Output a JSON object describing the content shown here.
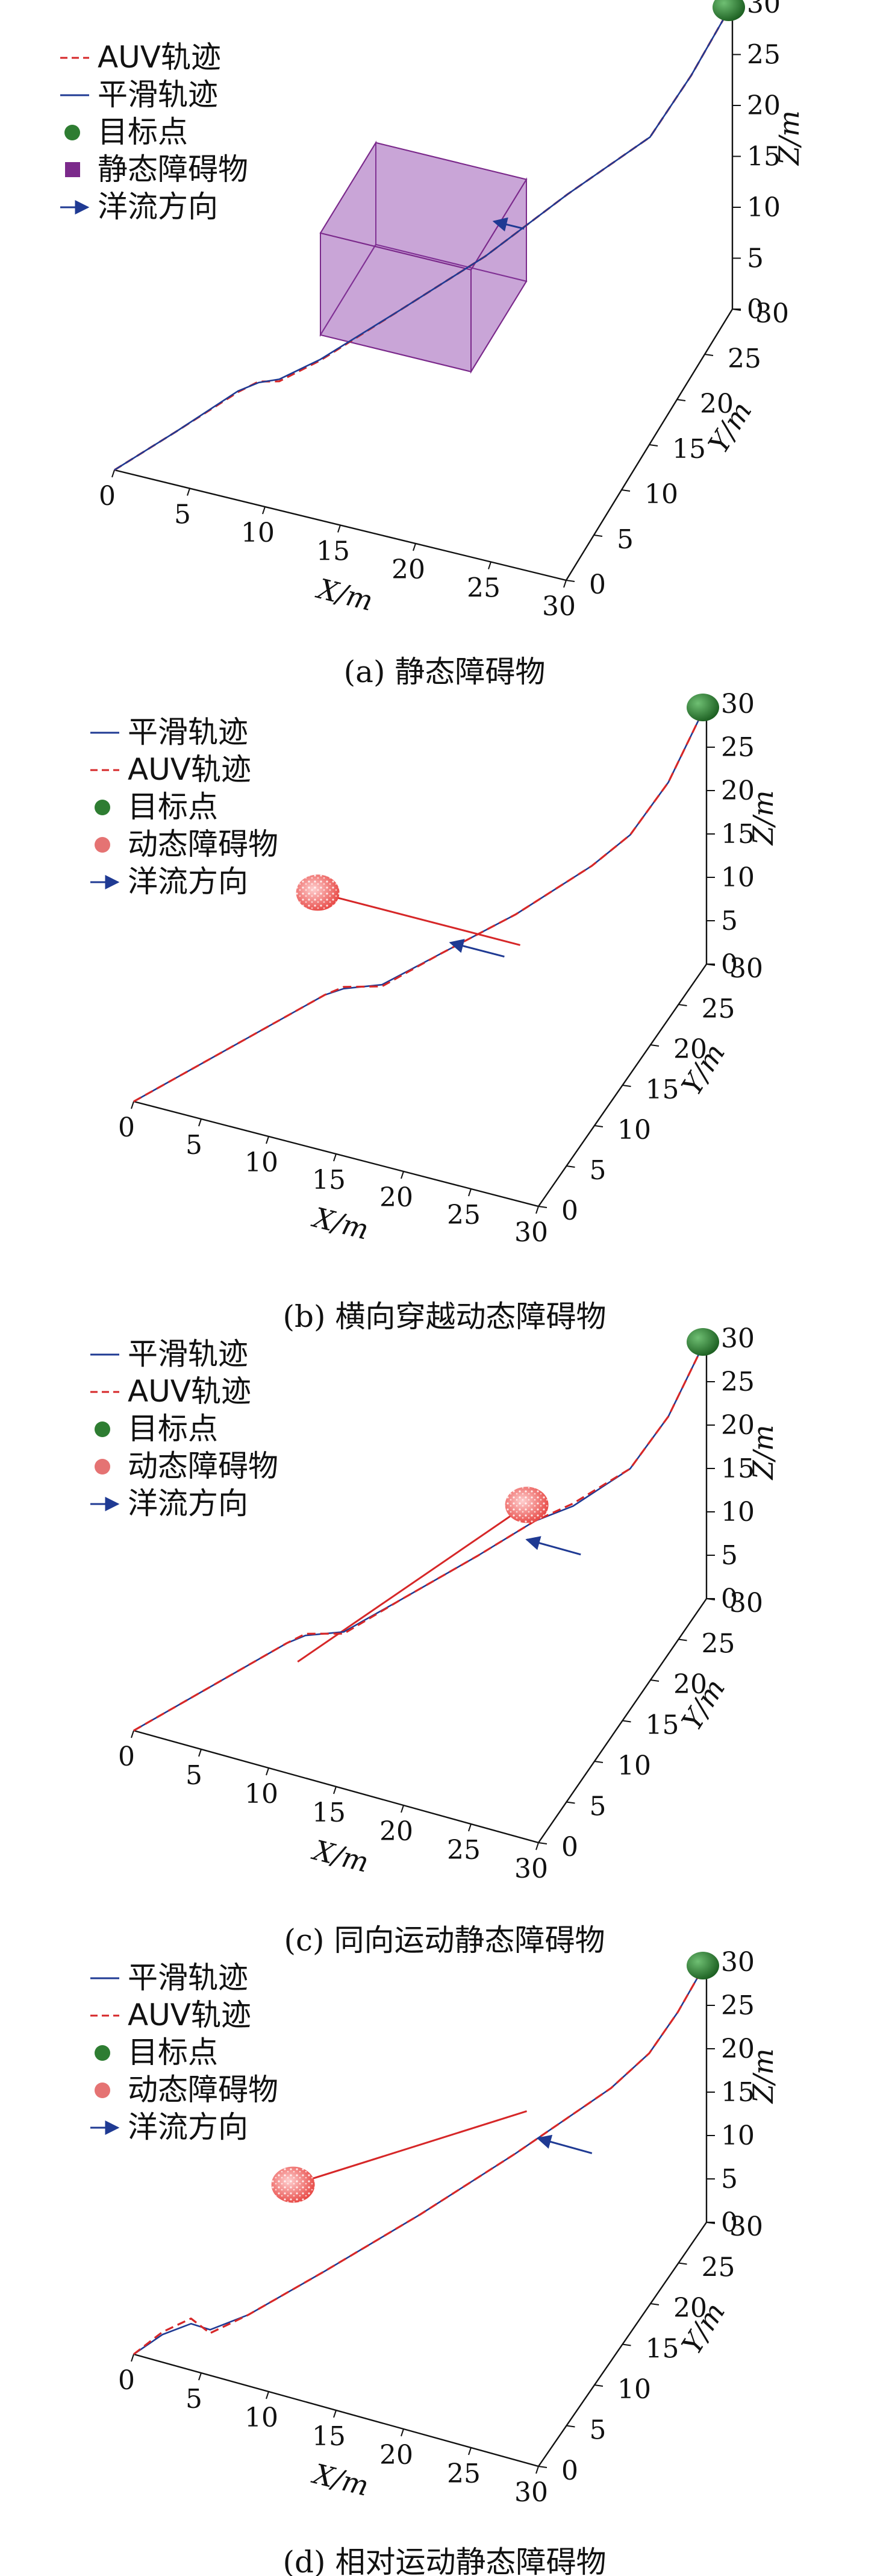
{
  "chart_data": [
    {
      "type": "line",
      "subtype": "3d-trajectory",
      "caption": "(a) 静态障碍物",
      "xlabel": "X/m",
      "ylabel": "Y/m",
      "zlabel": "Z/m",
      "xlim": [
        0,
        30
      ],
      "ylim": [
        0,
        30
      ],
      "zlim": [
        0,
        30
      ],
      "xticks": [
        0,
        5,
        10,
        15,
        20,
        25,
        30
      ],
      "yticks": [
        0,
        5,
        10,
        15,
        20,
        25,
        30
      ],
      "zticks": [
        0,
        5,
        10,
        15,
        20,
        25,
        30
      ],
      "grid": false,
      "legend_position": "top-left",
      "legend": [
        {
          "label": "AUV轨迹",
          "kind": "dashed-line",
          "color": "#d62728"
        },
        {
          "label": "平滑轨迹",
          "kind": "line",
          "color": "#1f3a93"
        },
        {
          "label": "目标点",
          "kind": "dot",
          "color": "#2e7d32"
        },
        {
          "label": "静态障碍物",
          "kind": "square",
          "color": "#7b2a8b"
        },
        {
          "label": "洋流方向",
          "kind": "arrow",
          "color": "#1f3a93"
        }
      ],
      "series": [
        {
          "name": "AUV轨迹",
          "style": "dashed",
          "color": "#d62728",
          "points": [
            [
              0,
              0,
              0
            ],
            [
              3,
              3,
              2.2
            ],
            [
              6,
              6,
              4.5
            ],
            [
              7,
              7,
              5
            ],
            [
              8,
              8,
              4.5
            ],
            [
              10,
              10,
              5.5
            ],
            [
              14,
              14,
              8.5
            ],
            [
              18,
              18,
              11.5
            ],
            [
              22,
              22,
              15.5
            ],
            [
              26,
              26,
              19
            ],
            [
              28,
              28,
              24
            ],
            [
              30,
              30,
              30
            ]
          ]
        },
        {
          "name": "平滑轨迹",
          "style": "solid",
          "color": "#1f3a93",
          "points": [
            [
              0,
              0,
              0
            ],
            [
              3,
              3,
              2.2
            ],
            [
              6,
              6,
              4.6
            ],
            [
              7,
              7,
              4.9
            ],
            [
              8,
              8,
              4.7
            ],
            [
              10,
              10,
              5.6
            ],
            [
              14,
              14,
              8.5
            ],
            [
              18,
              18,
              11.5
            ],
            [
              22,
              22,
              15.5
            ],
            [
              26,
              26,
              19
            ],
            [
              28,
              28,
              24
            ],
            [
              30,
              30,
              30
            ]
          ]
        }
      ],
      "target": [
        30,
        30,
        30
      ],
      "static_obstacle": {
        "x": [
          10,
          20
        ],
        "y": [
          10,
          20
        ],
        "z": [
          8,
          18
        ]
      },
      "current_arrow": {
        "from": [
          18,
          25,
          8
        ],
        "to": [
          16,
          25,
          8
        ]
      }
    },
    {
      "type": "line",
      "subtype": "3d-trajectory",
      "caption": "(b) 横向穿越动态障碍物",
      "xlabel": "X/m",
      "ylabel": "Y/m",
      "zlabel": "Z/m",
      "xlim": [
        0,
        30
      ],
      "ylim": [
        0,
        30
      ],
      "zlim": [
        0,
        30
      ],
      "xticks": [
        0,
        5,
        10,
        15,
        20,
        25,
        30
      ],
      "yticks": [
        0,
        5,
        10,
        15,
        20,
        25,
        30
      ],
      "zticks": [
        0,
        5,
        10,
        15,
        20,
        25,
        30
      ],
      "grid": false,
      "legend_position": "top-left",
      "legend": [
        {
          "label": "平滑轨迹",
          "kind": "line",
          "color": "#1f3a93"
        },
        {
          "label": "AUV轨迹",
          "kind": "dashed-line",
          "color": "#d62728"
        },
        {
          "label": "目标点",
          "kind": "dot",
          "color": "#2e7d32"
        },
        {
          "label": "动态障碍物",
          "kind": "dot",
          "color": "#e57373"
        },
        {
          "label": "洋流方向",
          "kind": "arrow",
          "color": "#1f3a93"
        }
      ],
      "series": [
        {
          "name": "平滑轨迹",
          "style": "solid",
          "color": "#1f3a93",
          "points": [
            [
              0,
              0,
              0
            ],
            [
              5,
              5,
              3.5
            ],
            [
              10,
              10,
              7
            ],
            [
              11,
              11,
              7.2
            ],
            [
              13,
              13,
              6.6
            ],
            [
              16,
              16,
              8.5
            ],
            [
              20,
              20,
              11
            ],
            [
              24,
              24,
              14.5
            ],
            [
              26,
              26,
              17
            ],
            [
              28,
              28,
              22
            ],
            [
              30,
              30,
              30
            ]
          ]
        },
        {
          "name": "AUV轨迹",
          "style": "dashed",
          "color": "#d62728",
          "points": [
            [
              0,
              0,
              0
            ],
            [
              5,
              5,
              3.5
            ],
            [
              10,
              10,
              7
            ],
            [
              11,
              11,
              7.4
            ],
            [
              13,
              13,
              6.4
            ],
            [
              16,
              16,
              8.5
            ],
            [
              20,
              20,
              11
            ],
            [
              24,
              24,
              14.5
            ],
            [
              26,
              26,
              17
            ],
            [
              28,
              28,
              22
            ],
            [
              30,
              30,
              30
            ]
          ]
        }
      ],
      "target": [
        30,
        30,
        30
      ],
      "dynamic_obstacle": {
        "position": [
          7,
          16,
          12
        ],
        "path_to": [
          22,
          16,
          12
        ]
      },
      "current_arrow": {
        "from": [
          20,
          18,
          8
        ],
        "to": [
          16,
          18,
          8
        ]
      }
    },
    {
      "type": "line",
      "subtype": "3d-trajectory",
      "caption": "(c) 同向运动静态障碍物",
      "xlabel": "X/m",
      "ylabel": "Y/m",
      "zlabel": "Z/m",
      "xlim": [
        0,
        30
      ],
      "ylim": [
        0,
        30
      ],
      "zlim": [
        0,
        30
      ],
      "xticks": [
        0,
        5,
        10,
        15,
        20,
        25,
        30
      ],
      "yticks": [
        0,
        5,
        10,
        15,
        20,
        25,
        30
      ],
      "zticks": [
        0,
        5,
        10,
        15,
        20,
        25,
        30
      ],
      "grid": false,
      "legend_position": "top-left",
      "legend": [
        {
          "label": "平滑轨迹",
          "kind": "line",
          "color": "#1f3a93"
        },
        {
          "label": "AUV轨迹",
          "kind": "dashed-line",
          "color": "#d62728"
        },
        {
          "label": "目标点",
          "kind": "dot",
          "color": "#2e7d32"
        },
        {
          "label": "动态障碍物",
          "kind": "dot",
          "color": "#e57373"
        },
        {
          "label": "洋流方向",
          "kind": "arrow",
          "color": "#1f3a93"
        }
      ],
      "series": [
        {
          "name": "平滑轨迹",
          "style": "solid",
          "color": "#1f3a93",
          "points": [
            [
              0,
              0,
              0
            ],
            [
              4,
              4,
              3
            ],
            [
              8,
              8,
              6
            ],
            [
              9,
              9,
              6.4
            ],
            [
              11,
              11,
              5.8
            ],
            [
              14,
              14,
              8
            ],
            [
              18,
              18,
              11
            ],
            [
              21,
              21,
              13.5
            ],
            [
              23,
              23,
              14.2
            ],
            [
              26,
              26,
              17
            ],
            [
              28,
              28,
              22
            ],
            [
              30,
              30,
              30
            ]
          ]
        },
        {
          "name": "AUV轨迹",
          "style": "dashed",
          "color": "#d62728",
          "points": [
            [
              0,
              0,
              0
            ],
            [
              4,
              4,
              3
            ],
            [
              8,
              8,
              6
            ],
            [
              9,
              9,
              6.6
            ],
            [
              11,
              11,
              5.6
            ],
            [
              14,
              14,
              8
            ],
            [
              18,
              18,
              11
            ],
            [
              21,
              21,
              13.5
            ],
            [
              23,
              23,
              14.5
            ],
            [
              26,
              26,
              17
            ],
            [
              28,
              28,
              22
            ],
            [
              30,
              30,
              30
            ]
          ]
        }
      ],
      "target": [
        30,
        30,
        30
      ],
      "dynamic_obstacle": {
        "position": [
          20,
          22,
          14
        ],
        "path_from": [
          8,
          10,
          2
        ]
      },
      "current_arrow": {
        "from": [
          24,
          22,
          10
        ],
        "to": [
          20,
          22,
          10
        ]
      }
    },
    {
      "type": "line",
      "subtype": "3d-trajectory",
      "caption": "(d) 相对运动静态障碍物",
      "xlabel": "X/m",
      "ylabel": "Y/m",
      "zlabel": "Z/m",
      "xlim": [
        0,
        30
      ],
      "ylim": [
        0,
        30
      ],
      "zlim": [
        0,
        30
      ],
      "xticks": [
        0,
        5,
        10,
        15,
        20,
        25,
        30
      ],
      "yticks": [
        0,
        5,
        10,
        15,
        20,
        25,
        30
      ],
      "zticks": [
        0,
        5,
        10,
        15,
        20,
        25,
        30
      ],
      "grid": false,
      "legend_position": "top-left",
      "legend": [
        {
          "label": "平滑轨迹",
          "kind": "line",
          "color": "#1f3a93"
        },
        {
          "label": "AUV轨迹",
          "kind": "dashed-line",
          "color": "#d62728"
        },
        {
          "label": "目标点",
          "kind": "dot",
          "color": "#2e7d32"
        },
        {
          "label": "动态障碍物",
          "kind": "dot",
          "color": "#e57373"
        },
        {
          "label": "洋流方向",
          "kind": "arrow",
          "color": "#1f3a93"
        }
      ],
      "series": [
        {
          "name": "平滑轨迹",
          "style": "solid",
          "color": "#1f3a93",
          "points": [
            [
              0,
              0,
              0
            ],
            [
              1.5,
              1.5,
              1.5
            ],
            [
              3,
              3,
              2
            ],
            [
              4,
              4,
              0.8
            ],
            [
              6,
              6,
              1.5
            ],
            [
              10,
              10,
              4.5
            ],
            [
              15,
              15,
              8.5
            ],
            [
              20,
              20,
              13
            ],
            [
              25,
              25,
              18
            ],
            [
              27,
              27,
              21
            ],
            [
              28.5,
              28.5,
              25
            ],
            [
              30,
              30,
              30
            ]
          ]
        },
        {
          "name": "AUV轨迹",
          "style": "dashed",
          "color": "#d62728",
          "points": [
            [
              0,
              0,
              0
            ],
            [
              1.5,
              1.5,
              1.8
            ],
            [
              3,
              3,
              2.6
            ],
            [
              4,
              4,
              0.4
            ],
            [
              6,
              6,
              1.5
            ],
            [
              10,
              10,
              4.5
            ],
            [
              15,
              15,
              8.5
            ],
            [
              20,
              20,
              13
            ],
            [
              25,
              25,
              18
            ],
            [
              27,
              27,
              21
            ],
            [
              28.5,
              28.5,
              25
            ],
            [
              30,
              30,
              30
            ]
          ]
        }
      ],
      "target": [
        30,
        30,
        30
      ],
      "dynamic_obstacle": {
        "position": [
          6,
          14,
          9
        ],
        "path_to": [
          20,
          22,
          16
        ]
      },
      "current_arrow": {
        "from": [
          24,
          24,
          11
        ],
        "to": [
          20,
          24,
          11
        ]
      }
    }
  ]
}
